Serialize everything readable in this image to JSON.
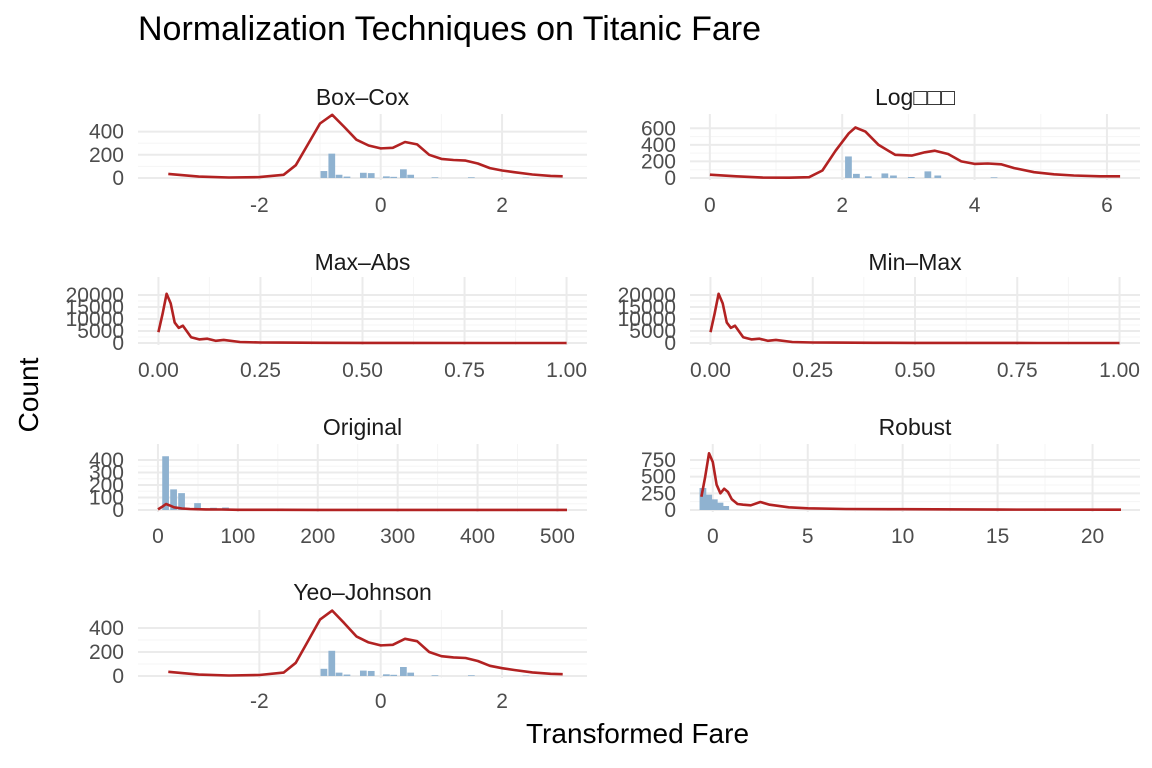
{
  "title": "Normalization Techniques on Titanic Fare",
  "chart_data": {
    "type": "histogram",
    "title": "Normalization Techniques on Titanic Fare",
    "xlabel": "Transformed Fare",
    "ylabel": "Count",
    "grid": true,
    "colors": {
      "bars": "#8fb2d0",
      "density": "#b22222"
    },
    "panels": [
      {
        "name": "Box–Cox",
        "xlim": [
          -4,
          3.4
        ],
        "ylim": [
          0,
          500
        ],
        "xticks": [
          -2,
          0,
          2
        ],
        "yticks": [
          0,
          200,
          400
        ],
        "bars": [
          [
            -0.93,
            60
          ],
          [
            -0.8,
            210
          ],
          [
            -0.68,
            28
          ],
          [
            -0.55,
            12
          ],
          [
            -0.28,
            45
          ],
          [
            -0.15,
            42
          ],
          [
            0.1,
            14
          ],
          [
            0.22,
            10
          ],
          [
            0.38,
            75
          ],
          [
            0.5,
            28
          ],
          [
            0.9,
            6
          ],
          [
            1.5,
            6
          ],
          [
            2.4,
            3
          ]
        ],
        "density": [
          [
            -3.5,
            35
          ],
          [
            -3.0,
            12
          ],
          [
            -2.5,
            4
          ],
          [
            -2.0,
            8
          ],
          [
            -1.6,
            28
          ],
          [
            -1.4,
            110
          ],
          [
            -1.2,
            290
          ],
          [
            -1.0,
            470
          ],
          [
            -0.8,
            545
          ],
          [
            -0.6,
            440
          ],
          [
            -0.4,
            330
          ],
          [
            -0.2,
            280
          ],
          [
            0,
            255
          ],
          [
            0.2,
            260
          ],
          [
            0.4,
            310
          ],
          [
            0.6,
            290
          ],
          [
            0.8,
            200
          ],
          [
            1.0,
            165
          ],
          [
            1.2,
            155
          ],
          [
            1.4,
            150
          ],
          [
            1.6,
            125
          ],
          [
            1.8,
            85
          ],
          [
            2.0,
            65
          ],
          [
            2.2,
            50
          ],
          [
            2.5,
            30
          ],
          [
            2.8,
            18
          ],
          [
            3.0,
            15
          ]
        ]
      },
      {
        "name": "Log□□□",
        "xlim": [
          -0.3,
          6.5
        ],
        "ylim": [
          0,
          700
        ],
        "xticks": [
          0,
          2,
          4,
          6
        ],
        "yticks": [
          0,
          200,
          400,
          600
        ],
        "bars": [
          [
            2.1,
            260
          ],
          [
            2.22,
            50
          ],
          [
            2.4,
            20
          ],
          [
            2.65,
            55
          ],
          [
            2.78,
            30
          ],
          [
            3.05,
            12
          ],
          [
            3.3,
            80
          ],
          [
            3.45,
            30
          ],
          [
            4.3,
            8
          ]
        ],
        "density": [
          [
            0,
            40
          ],
          [
            0.4,
            20
          ],
          [
            0.8,
            5
          ],
          [
            1.2,
            4
          ],
          [
            1.5,
            10
          ],
          [
            1.7,
            90
          ],
          [
            1.9,
            330
          ],
          [
            2.1,
            540
          ],
          [
            2.2,
            610
          ],
          [
            2.35,
            560
          ],
          [
            2.55,
            400
          ],
          [
            2.8,
            280
          ],
          [
            3.05,
            270
          ],
          [
            3.25,
            310
          ],
          [
            3.4,
            330
          ],
          [
            3.6,
            290
          ],
          [
            3.8,
            200
          ],
          [
            4.0,
            170
          ],
          [
            4.2,
            175
          ],
          [
            4.4,
            165
          ],
          [
            4.6,
            120
          ],
          [
            4.9,
            70
          ],
          [
            5.2,
            45
          ],
          [
            5.5,
            30
          ],
          [
            5.9,
            20
          ],
          [
            6.2,
            20
          ]
        ]
      },
      {
        "name": "Max–Abs",
        "xlim": [
          -0.05,
          1.05
        ],
        "ylim": [
          0,
          25000
        ],
        "xticks": [
          0.0,
          0.25,
          0.5,
          0.75,
          1.0
        ],
        "tick_labels": [
          "0.00",
          "0.25",
          "0.50",
          "0.75",
          "1.00"
        ],
        "yticks": [
          0,
          5000,
          10000,
          15000,
          20000
        ],
        "bars": [],
        "density": [
          [
            0.0,
            4500
          ],
          [
            0.01,
            12000
          ],
          [
            0.02,
            20500
          ],
          [
            0.03,
            16500
          ],
          [
            0.04,
            8500
          ],
          [
            0.05,
            6300
          ],
          [
            0.06,
            7200
          ],
          [
            0.07,
            4800
          ],
          [
            0.08,
            2400
          ],
          [
            0.1,
            1500
          ],
          [
            0.12,
            1800
          ],
          [
            0.14,
            900
          ],
          [
            0.16,
            1300
          ],
          [
            0.2,
            400
          ],
          [
            0.25,
            200
          ],
          [
            0.3,
            150
          ],
          [
            0.4,
            80
          ],
          [
            0.5,
            40
          ],
          [
            0.6,
            30
          ],
          [
            0.8,
            20
          ],
          [
            1.0,
            15
          ]
        ]
      },
      {
        "name": "Min–Max",
        "xlim": [
          -0.05,
          1.05
        ],
        "ylim": [
          0,
          25000
        ],
        "xticks": [
          0.0,
          0.25,
          0.5,
          0.75,
          1.0
        ],
        "tick_labels": [
          "0.00",
          "0.25",
          "0.50",
          "0.75",
          "1.00"
        ],
        "yticks": [
          0,
          5000,
          10000,
          15000,
          20000
        ],
        "bars": [],
        "density": [
          [
            0.0,
            4500
          ],
          [
            0.01,
            12000
          ],
          [
            0.02,
            20500
          ],
          [
            0.03,
            16500
          ],
          [
            0.04,
            8500
          ],
          [
            0.05,
            6300
          ],
          [
            0.06,
            7200
          ],
          [
            0.07,
            4800
          ],
          [
            0.08,
            2400
          ],
          [
            0.1,
            1500
          ],
          [
            0.12,
            1800
          ],
          [
            0.14,
            900
          ],
          [
            0.16,
            1300
          ],
          [
            0.2,
            400
          ],
          [
            0.25,
            200
          ],
          [
            0.3,
            150
          ],
          [
            0.4,
            80
          ],
          [
            0.5,
            40
          ],
          [
            0.6,
            30
          ],
          [
            0.8,
            20
          ],
          [
            1.0,
            15
          ]
        ]
      },
      {
        "name": "Original",
        "xlim": [
          -25,
          537
        ],
        "ylim": [
          0,
          480
        ],
        "xticks": [
          0,
          100,
          200,
          300,
          400,
          500
        ],
        "yticks": [
          0,
          100,
          200,
          300,
          400
        ],
        "tick_labels_y": [
          "0",
          "100",
          "200",
          "300",
          "400"
        ],
        "bars": [
          [
            10,
            430
          ],
          [
            20,
            165
          ],
          [
            30,
            135
          ],
          [
            50,
            55
          ],
          [
            70,
            18
          ],
          [
            85,
            20
          ]
        ],
        "density": [
          [
            0,
            5
          ],
          [
            5,
            25
          ],
          [
            10,
            48
          ],
          [
            15,
            35
          ],
          [
            20,
            22
          ],
          [
            30,
            12
          ],
          [
            40,
            8
          ],
          [
            60,
            5
          ],
          [
            80,
            4
          ],
          [
            100,
            2
          ],
          [
            150,
            2
          ],
          [
            200,
            1
          ],
          [
            300,
            1
          ],
          [
            400,
            1
          ],
          [
            512,
            1
          ]
        ]
      },
      {
        "name": "Robust",
        "xlim": [
          -1.2,
          22.5
        ],
        "ylim": [
          0,
          900
        ],
        "xticks": [
          0,
          5,
          10,
          15,
          20
        ],
        "yticks": [
          0,
          250,
          500,
          750
        ],
        "bars": [
          [
            -0.5,
            330
          ],
          [
            -0.2,
            230
          ],
          [
            0.1,
            160
          ],
          [
            0.4,
            110
          ],
          [
            0.7,
            60
          ]
        ],
        "density": [
          [
            -0.6,
            200
          ],
          [
            -0.4,
            500
          ],
          [
            -0.2,
            850
          ],
          [
            0,
            720
          ],
          [
            0.2,
            380
          ],
          [
            0.4,
            250
          ],
          [
            0.6,
            320
          ],
          [
            0.8,
            270
          ],
          [
            1.0,
            160
          ],
          [
            1.3,
            90
          ],
          [
            1.6,
            80
          ],
          [
            2.0,
            70
          ],
          [
            2.5,
            120
          ],
          [
            3.0,
            80
          ],
          [
            4.0,
            40
          ],
          [
            5.0,
            25
          ],
          [
            7.0,
            15
          ],
          [
            10,
            12
          ],
          [
            15,
            6
          ],
          [
            21.5,
            5
          ]
        ]
      },
      {
        "name": "Yeo–Johnson",
        "xlim": [
          -4,
          3.4
        ],
        "ylim": [
          0,
          500
        ],
        "xticks": [
          -2,
          0,
          2
        ],
        "yticks": [
          0,
          200,
          400
        ],
        "bars": [
          [
            -0.93,
            60
          ],
          [
            -0.8,
            210
          ],
          [
            -0.68,
            28
          ],
          [
            -0.55,
            12
          ],
          [
            -0.28,
            45
          ],
          [
            -0.15,
            42
          ],
          [
            0.1,
            14
          ],
          [
            0.22,
            10
          ],
          [
            0.38,
            75
          ],
          [
            0.5,
            28
          ],
          [
            0.9,
            6
          ],
          [
            1.5,
            6
          ],
          [
            2.4,
            3
          ]
        ],
        "density": [
          [
            -3.5,
            35
          ],
          [
            -3.0,
            12
          ],
          [
            -2.5,
            4
          ],
          [
            -2.0,
            8
          ],
          [
            -1.6,
            28
          ],
          [
            -1.4,
            110
          ],
          [
            -1.2,
            290
          ],
          [
            -1.0,
            470
          ],
          [
            -0.8,
            545
          ],
          [
            -0.6,
            440
          ],
          [
            -0.4,
            330
          ],
          [
            -0.2,
            280
          ],
          [
            0,
            255
          ],
          [
            0.2,
            260
          ],
          [
            0.4,
            310
          ],
          [
            0.6,
            290
          ],
          [
            0.8,
            200
          ],
          [
            1.0,
            165
          ],
          [
            1.2,
            155
          ],
          [
            1.4,
            150
          ],
          [
            1.6,
            125
          ],
          [
            1.8,
            85
          ],
          [
            2.0,
            65
          ],
          [
            2.2,
            50
          ],
          [
            2.5,
            30
          ],
          [
            2.8,
            18
          ],
          [
            3.0,
            15
          ]
        ]
      }
    ]
  }
}
